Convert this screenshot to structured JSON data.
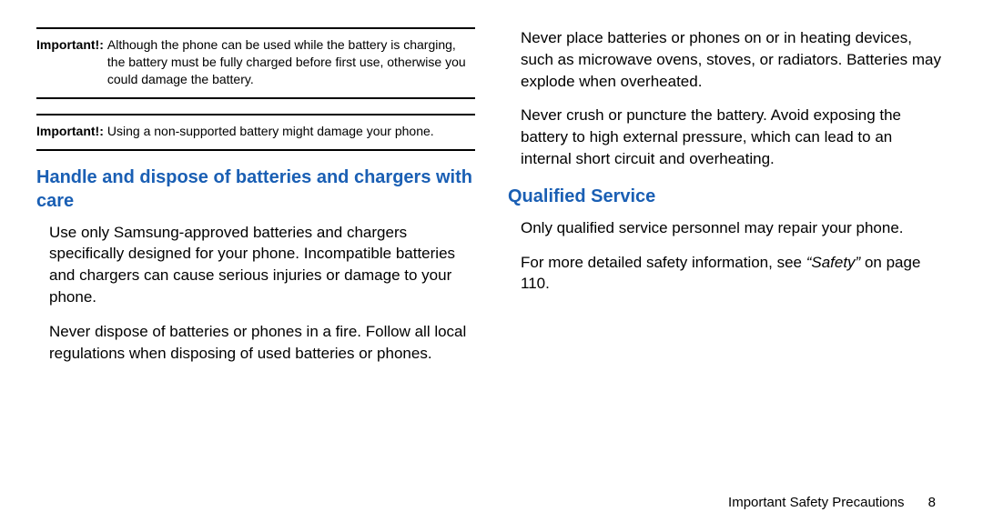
{
  "colors": {
    "heading": "#1a5fb4",
    "text": "#000000",
    "background": "#ffffff",
    "rule": "#000000"
  },
  "typography": {
    "body_fontsize_pt": 13,
    "heading_fontsize_pt": 15,
    "note_fontsize_pt": 10.5,
    "font_family": "Arial, Helvetica, sans-serif"
  },
  "left": {
    "note1": {
      "label": "Important!:",
      "text": "Although the phone can be used while the battery is charging, the battery must be fully charged before first use, otherwise you could damage the battery."
    },
    "note2": {
      "label": "Important!:",
      "text": "Using a non-supported battery might damage your phone."
    },
    "heading": "Handle and dispose of batteries and chargers with care",
    "p1": "Use only Samsung-approved batteries and chargers specifically designed for your phone. Incompatible batteries and chargers can cause serious injuries or damage to your phone.",
    "p2": "Never dispose of batteries or phones in a fire. Follow all local regulations when disposing of used batteries or phones."
  },
  "right": {
    "p1": "Never place batteries or phones on or in heating devices, such as microwave ovens, stoves, or radiators. Batteries may explode when overheated.",
    "p2": "Never crush or puncture the battery. Avoid exposing the battery to high external pressure, which can lead to an internal short circuit and overheating.",
    "heading": "Qualified Service",
    "p3": "Only qualified service personnel may repair your phone.",
    "p4_pre": "For more detailed safety information, see ",
    "p4_italic": "“Safety”",
    "p4_post": " on page 110."
  },
  "footer": {
    "section": "Important Safety Precautions",
    "page": "8"
  }
}
